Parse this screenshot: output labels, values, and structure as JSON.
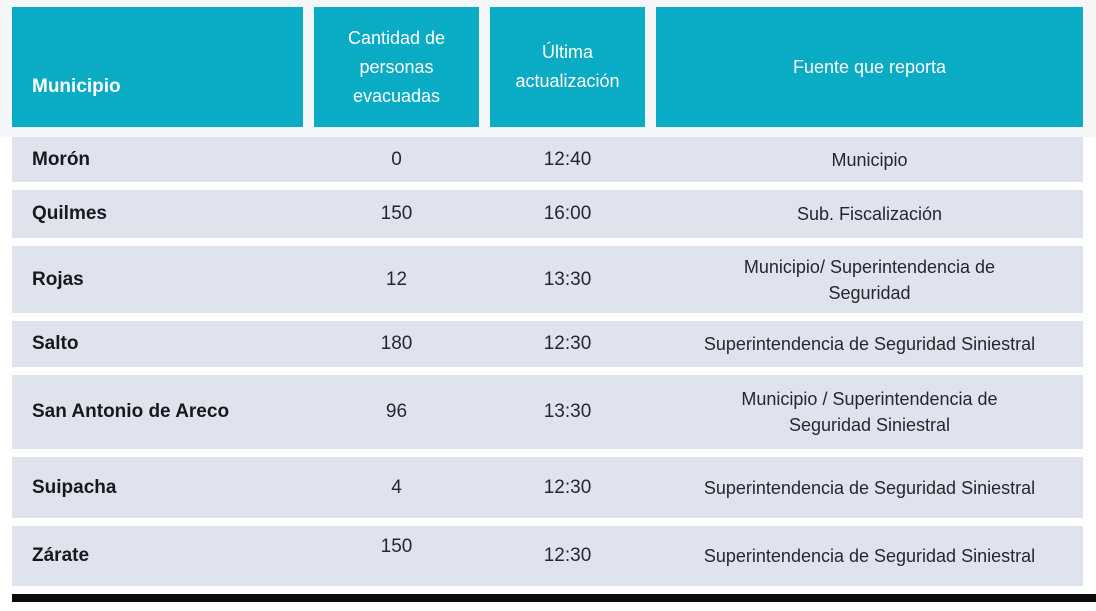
{
  "chart_data": {
    "type": "table",
    "columns": [
      "Municipio",
      "Cantidad de personas evacuadas",
      "Última actualización",
      "Fuente que reporta"
    ],
    "rows": [
      {
        "municipio": "Morón",
        "evacuadas": "0",
        "actualizacion": "12:40",
        "fuente_lines": [
          "Municipio"
        ]
      },
      {
        "municipio": "Quilmes",
        "evacuadas": "150",
        "actualizacion": "16:00",
        "fuente_lines": [
          "Sub. Fiscalización"
        ]
      },
      {
        "municipio": "Rojas",
        "evacuadas": "12",
        "actualizacion": "13:30",
        "fuente_lines": [
          "Municipio/ Superintendencia de",
          "Seguridad"
        ]
      },
      {
        "municipio": "Salto",
        "evacuadas": "180",
        "actualizacion": "12:30",
        "fuente_lines": [
          "Superintendencia de Seguridad Siniestral"
        ]
      },
      {
        "municipio": "San Antonio de Areco",
        "evacuadas": "96",
        "actualizacion": "13:30",
        "fuente_lines": [
          "Municipio / Superintendencia de",
          "Seguridad Siniestral"
        ]
      },
      {
        "municipio": "Suipacha",
        "evacuadas": "4",
        "actualizacion": "12:30",
        "fuente_lines": [
          "Superintendencia de Seguridad Siniestral"
        ]
      },
      {
        "municipio": "Zárate",
        "evacuadas": "150",
        "actualizacion": "12:30",
        "fuente_lines": [
          "Superintendencia de Seguridad Siniestral"
        ]
      }
    ]
  },
  "colors": {
    "header_cell_bg": "#0aabc4",
    "header_text": "#ffffff",
    "header_band_bg": "#f4f6f8",
    "row_bg": "#dfe3ed",
    "body_text": "#24282e",
    "bottom_bar": "#0b0b0b",
    "page_bg": "#ffffff"
  }
}
